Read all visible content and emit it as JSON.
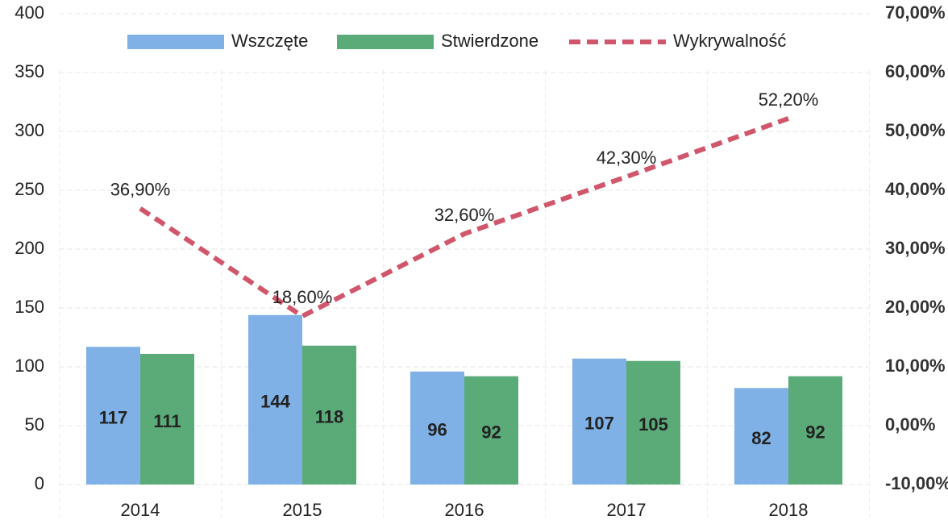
{
  "chart_data": {
    "type": "bar-line",
    "categories": [
      "2014",
      "2015",
      "2016",
      "2017",
      "2018"
    ],
    "series": [
      {
        "name": "Wszczęte",
        "type": "bar",
        "color": "#7fb1e6",
        "values": [
          117,
          144,
          96,
          107,
          82
        ]
      },
      {
        "name": "Stwierdzone",
        "type": "bar",
        "color": "#5aab78",
        "values": [
          111,
          118,
          92,
          105,
          92
        ]
      },
      {
        "name": "Wykrywalność",
        "type": "line",
        "axis": "y2",
        "color": "#d0566b",
        "values": [
          36.9,
          18.6,
          32.6,
          42.3,
          52.2
        ],
        "value_labels": [
          "36,90%",
          "18,60%",
          "32,60%",
          "42,30%",
          "52,20%"
        ]
      }
    ],
    "ylim": [
      0,
      400
    ],
    "yticks": [
      0,
      50,
      100,
      150,
      200,
      250,
      300,
      350,
      400
    ],
    "y2lim": [
      -10,
      70
    ],
    "y2ticks": [
      {
        "value": -10,
        "label": "-10,00%"
      },
      {
        "value": 0,
        "label": "0,00%"
      },
      {
        "value": 10,
        "label": "10,00%"
      },
      {
        "value": 20,
        "label": "20,00%"
      },
      {
        "value": 30,
        "label": "30,00%"
      },
      {
        "value": 40,
        "label": "40,00%"
      },
      {
        "value": 50,
        "label": "50,00%"
      },
      {
        "value": 60,
        "label": "60,00%"
      },
      {
        "value": 70,
        "label": "70,00%"
      }
    ],
    "grid": true,
    "legend": "top"
  }
}
